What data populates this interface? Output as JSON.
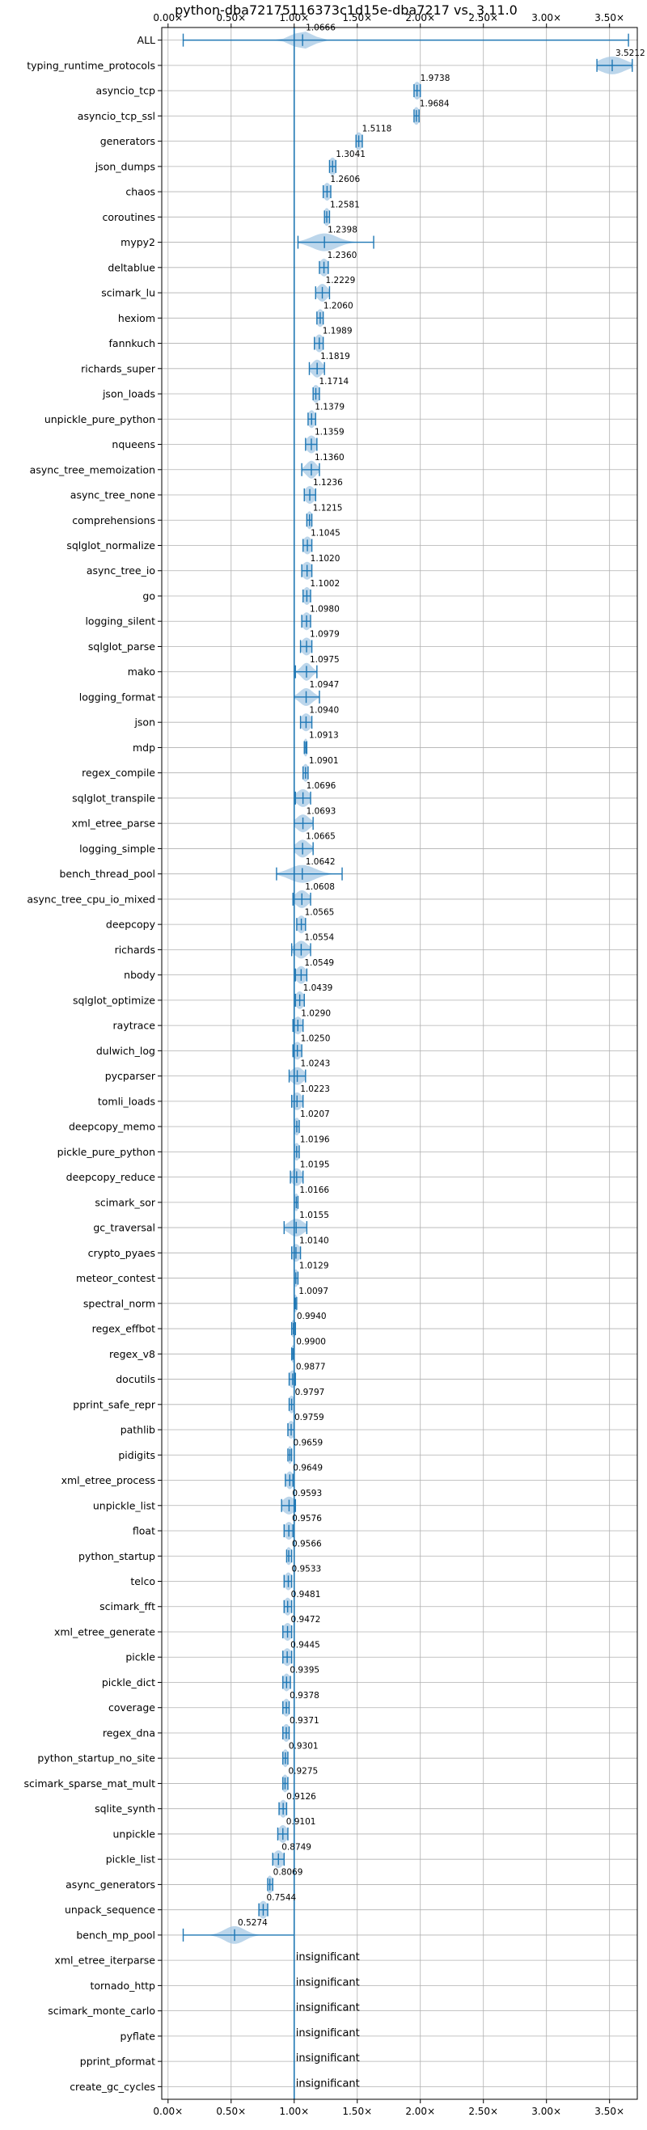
{
  "chart_data": {
    "type": "violin",
    "title": "python-dba72175116373c1d15e-dba7217 vs. 3.11.0",
    "xlabel": "",
    "ylabel": "",
    "xlim": [
      -0.05,
      3.72
    ],
    "x_ticks": [
      0.0,
      0.5,
      1.0,
      1.5,
      2.0,
      2.5,
      3.0,
      3.5
    ],
    "x_tick_labels": [
      "0.00×",
      "0.50×",
      "1.00×",
      "1.50×",
      "2.00×",
      "2.50×",
      "3.00×",
      "3.50×"
    ],
    "reference_line": 1.0,
    "grid": true,
    "accent_color": "#1f77b4",
    "violin_fill": "#a6c8e4",
    "benchmarks": [
      {
        "name": "ALL",
        "value": 1.0666,
        "label": "1.0666",
        "min": 0.12,
        "max": 3.65,
        "spread": 0.08
      },
      {
        "name": "typing_runtime_protocols",
        "value": 3.5212,
        "label": "3.5212",
        "min": 3.4,
        "max": 3.68,
        "spread": 0.1
      },
      {
        "name": "asyncio_tcp",
        "value": 1.9738,
        "label": "1.9738",
        "min": 1.95,
        "max": 2.0,
        "spread": 0.03
      },
      {
        "name": "asyncio_tcp_ssl",
        "value": 1.9684,
        "label": "1.9684",
        "min": 1.95,
        "max": 1.99,
        "spread": 0.025
      },
      {
        "name": "generators",
        "value": 1.5118,
        "label": "1.5118",
        "min": 1.49,
        "max": 1.54,
        "spread": 0.03
      },
      {
        "name": "json_dumps",
        "value": 1.3041,
        "label": "1.3041",
        "min": 1.28,
        "max": 1.33,
        "spread": 0.03
      },
      {
        "name": "chaos",
        "value": 1.2606,
        "label": "1.2606",
        "min": 1.23,
        "max": 1.29,
        "spread": 0.03
      },
      {
        "name": "coroutines",
        "value": 1.2581,
        "label": "1.2581",
        "min": 1.24,
        "max": 1.28,
        "spread": 0.025
      },
      {
        "name": "mypy2",
        "value": 1.2398,
        "label": "1.2398",
        "min": 1.03,
        "max": 1.63,
        "spread": 0.1
      },
      {
        "name": "deltablue",
        "value": 1.236,
        "label": "1.2360",
        "min": 1.2,
        "max": 1.27,
        "spread": 0.035
      },
      {
        "name": "scimark_lu",
        "value": 1.2229,
        "label": "1.2229",
        "min": 1.17,
        "max": 1.28,
        "spread": 0.04
      },
      {
        "name": "hexiom",
        "value": 1.206,
        "label": "1.2060",
        "min": 1.18,
        "max": 1.23,
        "spread": 0.03
      },
      {
        "name": "fannkuch",
        "value": 1.1989,
        "label": "1.1989",
        "min": 1.16,
        "max": 1.23,
        "spread": 0.035
      },
      {
        "name": "richards_super",
        "value": 1.1819,
        "label": "1.1819",
        "min": 1.12,
        "max": 1.24,
        "spread": 0.04
      },
      {
        "name": "json_loads",
        "value": 1.1714,
        "label": "1.1714",
        "min": 1.15,
        "max": 1.2,
        "spread": 0.03
      },
      {
        "name": "unpickle_pure_python",
        "value": 1.1379,
        "label": "1.1379",
        "min": 1.11,
        "max": 1.17,
        "spread": 0.03
      },
      {
        "name": "nqueens",
        "value": 1.1359,
        "label": "1.1359",
        "min": 1.09,
        "max": 1.18,
        "spread": 0.04
      },
      {
        "name": "async_tree_memoization",
        "value": 1.136,
        "label": "1.1360",
        "min": 1.06,
        "max": 1.2,
        "spread": 0.04
      },
      {
        "name": "async_tree_none",
        "value": 1.1236,
        "label": "1.1236",
        "min": 1.08,
        "max": 1.17,
        "spread": 0.04
      },
      {
        "name": "comprehensions",
        "value": 1.1215,
        "label": "1.1215",
        "min": 1.1,
        "max": 1.14,
        "spread": 0.025
      },
      {
        "name": "sqlglot_normalize",
        "value": 1.1045,
        "label": "1.1045",
        "min": 1.07,
        "max": 1.14,
        "spread": 0.035
      },
      {
        "name": "async_tree_io",
        "value": 1.102,
        "label": "1.1020",
        "min": 1.06,
        "max": 1.14,
        "spread": 0.04
      },
      {
        "name": "go",
        "value": 1.1002,
        "label": "1.1002",
        "min": 1.07,
        "max": 1.13,
        "spread": 0.03
      },
      {
        "name": "logging_silent",
        "value": 1.098,
        "label": "1.0980",
        "min": 1.06,
        "max": 1.13,
        "spread": 0.035
      },
      {
        "name": "sqlglot_parse",
        "value": 1.0979,
        "label": "1.0979",
        "min": 1.05,
        "max": 1.14,
        "spread": 0.04
      },
      {
        "name": "mako",
        "value": 1.0975,
        "label": "1.0975",
        "min": 1.01,
        "max": 1.18,
        "spread": 0.04
      },
      {
        "name": "logging_format",
        "value": 1.0947,
        "label": "1.0947",
        "min": 1.0,
        "max": 1.2,
        "spread": 0.05
      },
      {
        "name": "json",
        "value": 1.094,
        "label": "1.0940",
        "min": 1.05,
        "max": 1.14,
        "spread": 0.04
      },
      {
        "name": "mdp",
        "value": 1.0913,
        "label": "1.0913",
        "min": 1.08,
        "max": 1.1,
        "spread": 0.02
      },
      {
        "name": "regex_compile",
        "value": 1.0901,
        "label": "1.0901",
        "min": 1.07,
        "max": 1.11,
        "spread": 0.025
      },
      {
        "name": "sqlglot_transpile",
        "value": 1.0696,
        "label": "1.0696",
        "min": 1.01,
        "max": 1.13,
        "spread": 0.05
      },
      {
        "name": "xml_etree_parse",
        "value": 1.0693,
        "label": "1.0693",
        "min": 1.0,
        "max": 1.15,
        "spread": 0.05
      },
      {
        "name": "logging_simple",
        "value": 1.0665,
        "label": "1.0665",
        "min": 1.0,
        "max": 1.15,
        "spread": 0.05
      },
      {
        "name": "bench_thread_pool",
        "value": 1.0642,
        "label": "1.0642",
        "min": 0.86,
        "max": 1.38,
        "spread": 0.1
      },
      {
        "name": "async_tree_cpu_io_mixed",
        "value": 1.0608,
        "label": "1.0608",
        "min": 0.99,
        "max": 1.13,
        "spread": 0.05
      },
      {
        "name": "deepcopy",
        "value": 1.0565,
        "label": "1.0565",
        "min": 1.02,
        "max": 1.09,
        "spread": 0.035
      },
      {
        "name": "richards",
        "value": 1.0554,
        "label": "1.0554",
        "min": 0.98,
        "max": 1.13,
        "spread": 0.05
      },
      {
        "name": "nbody",
        "value": 1.0549,
        "label": "1.0549",
        "min": 1.01,
        "max": 1.1,
        "spread": 0.04
      },
      {
        "name": "sqlglot_optimize",
        "value": 1.0439,
        "label": "1.0439",
        "min": 1.01,
        "max": 1.08,
        "spread": 0.035
      },
      {
        "name": "raytrace",
        "value": 1.029,
        "label": "1.0290",
        "min": 0.99,
        "max": 1.07,
        "spread": 0.035
      },
      {
        "name": "dulwich_log",
        "value": 1.025,
        "label": "1.0250",
        "min": 0.99,
        "max": 1.06,
        "spread": 0.035
      },
      {
        "name": "pycparser",
        "value": 1.0243,
        "label": "1.0243",
        "min": 0.96,
        "max": 1.09,
        "spread": 0.05
      },
      {
        "name": "tomli_loads",
        "value": 1.0223,
        "label": "1.0223",
        "min": 0.98,
        "max": 1.07,
        "spread": 0.04
      },
      {
        "name": "deepcopy_memo",
        "value": 1.0207,
        "label": "1.0207",
        "min": 1.0,
        "max": 1.04,
        "spread": 0.025
      },
      {
        "name": "pickle_pure_python",
        "value": 1.0196,
        "label": "1.0196",
        "min": 1.0,
        "max": 1.04,
        "spread": 0.025
      },
      {
        "name": "deepcopy_reduce",
        "value": 1.0195,
        "label": "1.0195",
        "min": 0.97,
        "max": 1.07,
        "spread": 0.04
      },
      {
        "name": "scimark_sor",
        "value": 1.0166,
        "label": "1.0166",
        "min": 1.0,
        "max": 1.03,
        "spread": 0.02
      },
      {
        "name": "gc_traversal",
        "value": 1.0155,
        "label": "1.0155",
        "min": 0.92,
        "max": 1.1,
        "spread": 0.06
      },
      {
        "name": "crypto_pyaes",
        "value": 1.014,
        "label": "1.0140",
        "min": 0.98,
        "max": 1.05,
        "spread": 0.035
      },
      {
        "name": "meteor_contest",
        "value": 1.0129,
        "label": "1.0129",
        "min": 1.0,
        "max": 1.03,
        "spread": 0.02
      },
      {
        "name": "spectral_norm",
        "value": 1.0097,
        "label": "1.0097",
        "min": 1.0,
        "max": 1.02,
        "spread": 0.015
      },
      {
        "name": "regex_effbot",
        "value": 0.994,
        "label": "0.9940",
        "min": 0.98,
        "max": 1.01,
        "spread": 0.02
      },
      {
        "name": "regex_v8",
        "value": 0.99,
        "label": "0.9900",
        "min": 0.98,
        "max": 1.0,
        "spread": 0.015
      },
      {
        "name": "docutils",
        "value": 0.9877,
        "label": "0.9877",
        "min": 0.96,
        "max": 1.01,
        "spread": 0.03
      },
      {
        "name": "pprint_safe_repr",
        "value": 0.9797,
        "label": "0.9797",
        "min": 0.96,
        "max": 1.0,
        "spread": 0.025
      },
      {
        "name": "pathlib",
        "value": 0.9759,
        "label": "0.9759",
        "min": 0.95,
        "max": 1.0,
        "spread": 0.03
      },
      {
        "name": "pidigits",
        "value": 0.9659,
        "label": "0.9659",
        "min": 0.95,
        "max": 0.98,
        "spread": 0.02
      },
      {
        "name": "xml_etree_process",
        "value": 0.9649,
        "label": "0.9649",
        "min": 0.93,
        "max": 0.99,
        "spread": 0.03
      },
      {
        "name": "unpickle_list",
        "value": 0.9593,
        "label": "0.9593",
        "min": 0.9,
        "max": 1.01,
        "spread": 0.05
      },
      {
        "name": "float",
        "value": 0.9576,
        "label": "0.9576",
        "min": 0.92,
        "max": 0.99,
        "spread": 0.035
      },
      {
        "name": "python_startup",
        "value": 0.9566,
        "label": "0.9566",
        "min": 0.94,
        "max": 0.98,
        "spread": 0.025
      },
      {
        "name": "telco",
        "value": 0.9533,
        "label": "0.9533",
        "min": 0.92,
        "max": 0.98,
        "spread": 0.03
      },
      {
        "name": "scimark_fft",
        "value": 0.9481,
        "label": "0.9481",
        "min": 0.92,
        "max": 0.98,
        "spread": 0.03
      },
      {
        "name": "xml_etree_generate",
        "value": 0.9472,
        "label": "0.9472",
        "min": 0.91,
        "max": 0.98,
        "spread": 0.035
      },
      {
        "name": "pickle",
        "value": 0.9445,
        "label": "0.9445",
        "min": 0.91,
        "max": 0.98,
        "spread": 0.035
      },
      {
        "name": "pickle_dict",
        "value": 0.9395,
        "label": "0.9395",
        "min": 0.91,
        "max": 0.97,
        "spread": 0.03
      },
      {
        "name": "coverage",
        "value": 0.9378,
        "label": "0.9378",
        "min": 0.91,
        "max": 0.96,
        "spread": 0.03
      },
      {
        "name": "regex_dna",
        "value": 0.9371,
        "label": "0.9371",
        "min": 0.91,
        "max": 0.96,
        "spread": 0.03
      },
      {
        "name": "python_startup_no_site",
        "value": 0.9301,
        "label": "0.9301",
        "min": 0.91,
        "max": 0.95,
        "spread": 0.025
      },
      {
        "name": "scimark_sparse_mat_mult",
        "value": 0.9275,
        "label": "0.9275",
        "min": 0.91,
        "max": 0.95,
        "spread": 0.025
      },
      {
        "name": "sqlite_synth",
        "value": 0.9126,
        "label": "0.9126",
        "min": 0.88,
        "max": 0.94,
        "spread": 0.03
      },
      {
        "name": "unpickle",
        "value": 0.9101,
        "label": "0.9101",
        "min": 0.87,
        "max": 0.95,
        "spread": 0.035
      },
      {
        "name": "pickle_list",
        "value": 0.8749,
        "label": "0.8749",
        "min": 0.83,
        "max": 0.92,
        "spread": 0.04
      },
      {
        "name": "async_generators",
        "value": 0.8069,
        "label": "0.8069",
        "min": 0.79,
        "max": 0.83,
        "spread": 0.025
      },
      {
        "name": "unpack_sequence",
        "value": 0.7544,
        "label": "0.7544",
        "min": 0.72,
        "max": 0.79,
        "spread": 0.035
      },
      {
        "name": "bench_mp_pool",
        "value": 0.5274,
        "label": "0.5274",
        "min": 0.12,
        "max": 1.0,
        "spread": 0.08
      },
      {
        "name": "xml_etree_iterparse",
        "value": null,
        "label": "insignificant"
      },
      {
        "name": "tornado_http",
        "value": null,
        "label": "insignificant"
      },
      {
        "name": "scimark_monte_carlo",
        "value": null,
        "label": "insignificant"
      },
      {
        "name": "pyflate",
        "value": null,
        "label": "insignificant"
      },
      {
        "name": "pprint_pformat",
        "value": null,
        "label": "insignificant"
      },
      {
        "name": "create_gc_cycles",
        "value": null,
        "label": "insignificant"
      }
    ]
  }
}
